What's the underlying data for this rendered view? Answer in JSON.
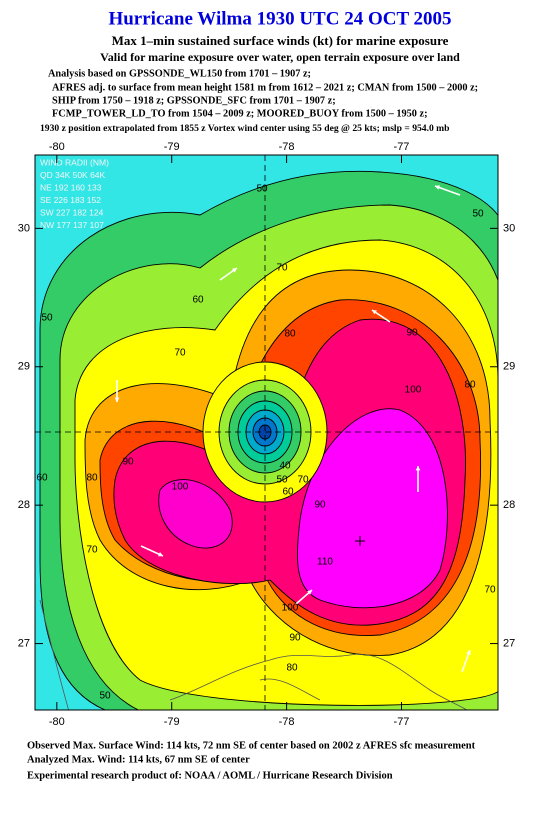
{
  "header": {
    "title": "Hurricane Wilma 1930 UTC 24 OCT 2005",
    "subtitle": "Max 1–min sustained surface winds (kt) for marine exposure",
    "note": "Valid for marine exposure over water, open terrain exposure over land",
    "analysis": [
      "Analysis based on  GPSSONDE_WL150 from 1701 – 1907 z;",
      "AFRES adj. to surface from mean height 1581 m from 1612 – 2021 z;  CMAN from 1500 – 2000 z;",
      "SHIP from 1750 – 1918 z;  GPSSONDE_SFC from 1701 – 1907 z;",
      "FCMP_TOWER_LD_TO from 1504 – 2009 z;  MOORED_BUOY from 1500 – 1950 z;",
      "1930 z position extrapolated from 1855 z Vortex wind center using 55 deg @ 25 kts; mslp = 954.0 mb"
    ]
  },
  "map": {
    "xlim": [
      -80.19,
      -76.16
    ],
    "ylim": [
      26.52,
      30.53
    ],
    "xticks": [
      -80,
      -79,
      -78,
      -77
    ],
    "yticks": [
      27,
      28,
      29,
      30
    ],
    "wind_radii": [
      "WIND RADII (NM)",
      "QD 34K 50K 64K",
      "NE 192 160 133",
      "SE 226 183 152",
      "SW 227 182 124",
      "NW 177 137 107"
    ],
    "contour_labels": [
      50,
      50,
      50,
      60,
      70,
      70,
      80,
      90,
      100,
      80,
      90,
      80,
      100,
      60,
      70,
      40,
      50,
      60,
      70,
      90,
      110,
      100,
      90,
      80,
      70,
      50
    ]
  },
  "footer": [
    "Observed Max. Surface Wind: 114 kts, 72 nm SE of center based on 2002 z AFRES sfc measurement",
    "Analyzed Max. Wind: 114 kts, 67 nm SE of center",
    "Experimental research product of:  NOAA / AOML / Hurricane Research Division"
  ]
}
